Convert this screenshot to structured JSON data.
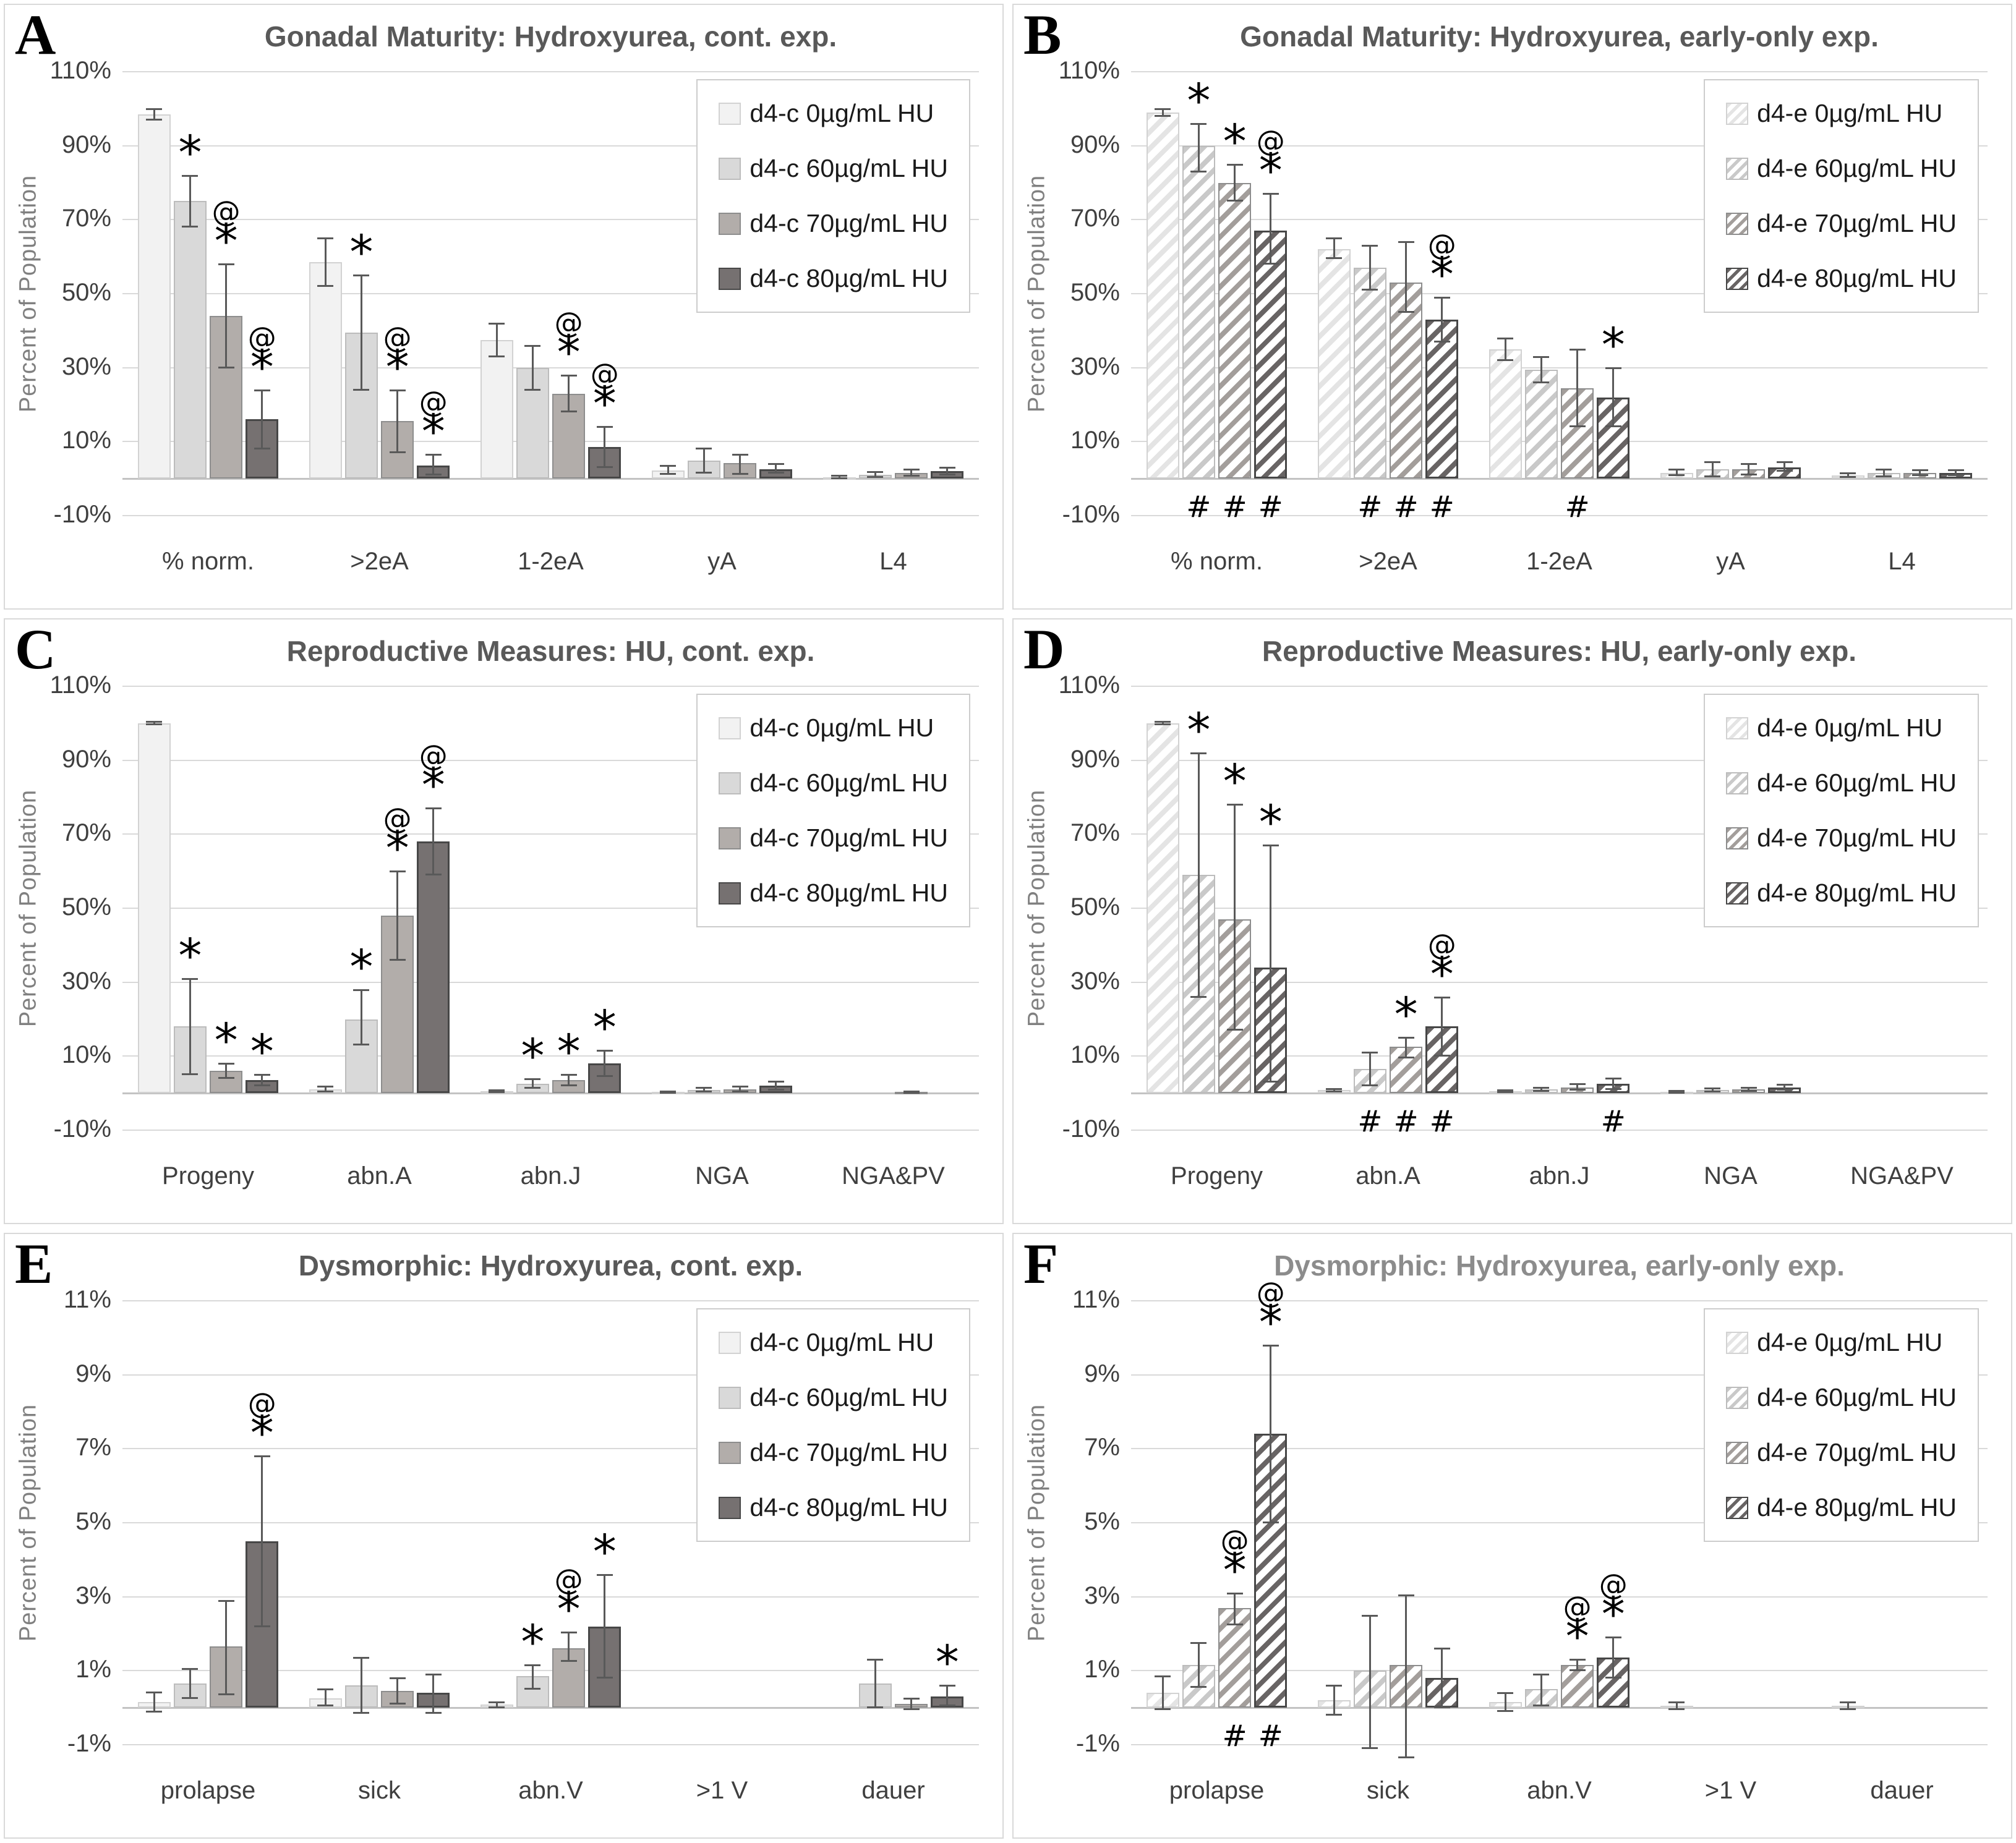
{
  "colors": {
    "series_fill": [
      "#f2f2f2",
      "#d9d9d9",
      "#b2adaa",
      "#767171"
    ],
    "series_border": [
      "#d2d2d2",
      "#bcbcbc",
      "#8d8d8d",
      "#474747"
    ],
    "hatch_stripe": [
      "#e4e4e4",
      "#c9c9c9",
      "#a39e9b",
      "#686464"
    ],
    "hatch_bg": "#ffffff",
    "error_bar": "#595959",
    "gridline": "#d9d9d9",
    "axis_line": "#c3c3c3",
    "tick_text": "#3f3f3f",
    "category_text": "#3f3f3f",
    "title_dark": "#595959",
    "title_light": "#8c8c8c",
    "ylabel_text": "#808080",
    "legend_border": "#cccccc",
    "legend_text": "#1a1a1a",
    "panel_letter": "#000000",
    "annotation": "#000000"
  },
  "chart_data": [
    {
      "panel": "A",
      "type": "bar",
      "hatched": false,
      "title_shade": "dark",
      "title": "Gonadal Maturity: Hydroxyurea, cont. exp.",
      "ylabel": "Percent of Population",
      "ylim": [
        -10,
        110
      ],
      "yticks": [
        "110%",
        "90%",
        "70%",
        "50%",
        "30%",
        "10%",
        "-10%"
      ],
      "grid": true,
      "legend_position": "top-right",
      "categories": [
        "% norm.",
        ">2eA",
        "1-2eA",
        "yA",
        "L4"
      ],
      "series": [
        {
          "name": "d4-c 0µg/mL HU",
          "values": [
            98.5,
            58.5,
            37.5,
            2.2,
            0.4
          ],
          "err_lo": [
            97,
            52,
            33,
            1.2,
            0.1
          ],
          "err_hi": [
            100,
            65,
            42,
            3.6,
            0.8
          ],
          "ann_above": [
            "",
            "",
            "",
            "",
            ""
          ],
          "ann_below": [
            "",
            "",
            "",
            "",
            ""
          ]
        },
        {
          "name": "d4-c 60µg/mL HU",
          "values": [
            75,
            39.5,
            30,
            4.8,
            1.1
          ],
          "err_lo": [
            68,
            24,
            24,
            1.5,
            0.4
          ],
          "err_hi": [
            82,
            55,
            36,
            8.2,
            1.8
          ],
          "ann_above": [
            "*",
            "*",
            "",
            "",
            ""
          ],
          "ann_below": [
            "",
            "",
            "",
            "",
            ""
          ]
        },
        {
          "name": "d4-c 70µg/mL HU",
          "values": [
            44,
            15.5,
            23,
            4.2,
            1.6
          ],
          "err_lo": [
            30,
            7,
            18,
            1.2,
            0.7
          ],
          "err_hi": [
            58,
            24,
            28,
            6.6,
            2.5
          ],
          "ann_above": [
            "@*",
            "@*",
            "@*",
            "",
            ""
          ],
          "ann_below": [
            "",
            "",
            "",
            "",
            ""
          ]
        },
        {
          "name": "d4-c 80µg/mL HU",
          "values": [
            16,
            3.5,
            8.5,
            2.6,
            2.1
          ],
          "err_lo": [
            8,
            1,
            3,
            1.5,
            1.1
          ],
          "err_hi": [
            24,
            6.5,
            14,
            4,
            3.1
          ],
          "ann_above": [
            "@*",
            "@*",
            "@*",
            "",
            ""
          ],
          "ann_below": [
            "",
            "",
            "",
            "",
            ""
          ]
        }
      ]
    },
    {
      "panel": "B",
      "type": "bar",
      "hatched": true,
      "title_shade": "dark",
      "title": "Gonadal Maturity: Hydroxyurea, early-only exp.",
      "ylabel": "Percent of Population",
      "ylim": [
        -10,
        110
      ],
      "yticks": [
        "110%",
        "90%",
        "70%",
        "50%",
        "30%",
        "10%",
        "-10%"
      ],
      "grid": true,
      "legend_position": "top-right",
      "categories": [
        "% norm.",
        ">2eA",
        "1-2eA",
        "yA",
        "L4"
      ],
      "series": [
        {
          "name": "d4-e 0µg/mL HU",
          "values": [
            99,
            62,
            35,
            1.6,
            0.9
          ],
          "err_lo": [
            98,
            59.5,
            32,
            0.9,
            0.4
          ],
          "err_hi": [
            100,
            65,
            38,
            2.6,
            1.5
          ],
          "ann_above": [
            "",
            "",
            "",
            "",
            ""
          ],
          "ann_below": [
            "",
            "",
            "",
            "",
            ""
          ]
        },
        {
          "name": "d4-e 60µg/mL HU",
          "values": [
            90,
            57,
            29.5,
            2.6,
            1.5
          ],
          "err_lo": [
            83,
            51,
            26,
            0.6,
            0.6
          ],
          "err_hi": [
            96,
            63,
            33,
            4.6,
            2.5
          ],
          "ann_above": [
            "*",
            "",
            "",
            "",
            ""
          ],
          "ann_below": [
            "#",
            "#",
            "",
            "",
            ""
          ]
        },
        {
          "name": "d4-e 70µg/mL HU",
          "values": [
            80,
            53,
            24.5,
            2.6,
            1.6
          ],
          "err_lo": [
            75,
            45,
            14,
            1.1,
            0.9
          ],
          "err_hi": [
            85,
            64,
            35,
            4.1,
            2.3
          ],
          "ann_above": [
            "*",
            "",
            "",
            "",
            ""
          ],
          "ann_below": [
            "#",
            "#",
            "#",
            "",
            ""
          ]
        },
        {
          "name": "d4-e 80µg/mL HU",
          "values": [
            67,
            43,
            22,
            3.1,
            1.6
          ],
          "err_lo": [
            58,
            37,
            14,
            2,
            0.9
          ],
          "err_hi": [
            77,
            49,
            30,
            4.6,
            2.4
          ],
          "ann_above": [
            "@*",
            "@*",
            "*",
            "",
            ""
          ],
          "ann_below": [
            "#",
            "#",
            "",
            "",
            ""
          ]
        }
      ]
    },
    {
      "panel": "C",
      "type": "bar",
      "hatched": false,
      "title_shade": "dark",
      "title": "Reproductive Measures: HU, cont. exp.",
      "ylabel": "Percent of Population",
      "ylim": [
        -10,
        110
      ],
      "yticks": [
        "110%",
        "90%",
        "70%",
        "50%",
        "30%",
        "10%",
        "-10%"
      ],
      "grid": true,
      "legend_position": "top-right",
      "categories": [
        "Progeny",
        "abn.A",
        "abn.J",
        "NGA",
        "NGA&PV"
      ],
      "series": [
        {
          "name": "d4-c 0µg/mL HU",
          "values": [
            100,
            1,
            0.5,
            0.3,
            0
          ],
          "err_lo": [
            99.6,
            0.3,
            0.2,
            0.1,
            0
          ],
          "err_hi": [
            100.4,
            1.8,
            0.9,
            0.6,
            0
          ],
          "ann_above": [
            "",
            "",
            "",
            "",
            ""
          ],
          "ann_below": [
            "",
            "",
            "",
            "",
            ""
          ]
        },
        {
          "name": "d4-c 60µg/mL HU",
          "values": [
            18,
            20,
            2.5,
            0.8,
            0
          ],
          "err_lo": [
            5,
            13,
            1.3,
            0.3,
            0
          ],
          "err_hi": [
            31,
            28,
            3.8,
            1.5,
            0
          ],
          "ann_above": [
            "*",
            "*",
            "*",
            "",
            ""
          ],
          "ann_below": [
            "",
            "",
            "",
            "",
            ""
          ]
        },
        {
          "name": "d4-c 70µg/mL HU",
          "values": [
            6,
            48,
            3.5,
            1,
            0.3
          ],
          "err_lo": [
            4,
            36,
            2,
            0.4,
            0.1
          ],
          "err_hi": [
            8,
            60,
            5,
            1.8,
            0.5
          ],
          "ann_above": [
            "*",
            "@*",
            "*",
            "",
            ""
          ],
          "ann_below": [
            "",
            "",
            "",
            "",
            ""
          ]
        },
        {
          "name": "d4-c 80µg/mL HU",
          "values": [
            3.5,
            68,
            8,
            2,
            0
          ],
          "err_lo": [
            2,
            59,
            4.5,
            0.8,
            0
          ],
          "err_hi": [
            5,
            77,
            11.5,
            3.2,
            0
          ],
          "ann_above": [
            "*",
            "@*",
            "*",
            "",
            ""
          ],
          "ann_below": [
            "",
            "",
            "",
            "",
            ""
          ]
        }
      ]
    },
    {
      "panel": "D",
      "type": "bar",
      "hatched": true,
      "title_shade": "dark",
      "title": "Reproductive Measures: HU, early-only exp.",
      "ylabel": "Percent of Population",
      "ylim": [
        -10,
        110
      ],
      "yticks": [
        "110%",
        "90%",
        "70%",
        "50%",
        "30%",
        "10%",
        "-10%"
      ],
      "grid": true,
      "legend_position": "top-right",
      "categories": [
        "Progeny",
        "abn.A",
        "abn.J",
        "NGA",
        "NGA&PV"
      ],
      "series": [
        {
          "name": "d4-e 0µg/mL HU",
          "values": [
            100,
            0.8,
            0.5,
            0.4,
            0
          ],
          "err_lo": [
            99.6,
            0.4,
            0.2,
            0.1,
            0
          ],
          "err_hi": [
            100.4,
            1.2,
            0.8,
            0.7,
            0
          ],
          "ann_above": [
            "",
            "",
            "",
            "",
            ""
          ],
          "ann_below": [
            "",
            "",
            "",
            "",
            ""
          ]
        },
        {
          "name": "d4-e 60µg/mL HU",
          "values": [
            59,
            6.5,
            1,
            0.8,
            0
          ],
          "err_lo": [
            26,
            2,
            0.5,
            0.3,
            0
          ],
          "err_hi": [
            92,
            11,
            1.6,
            1.3,
            0
          ],
          "ann_above": [
            "*",
            "",
            "",
            "",
            ""
          ],
          "ann_below": [
            "",
            "#",
            "",
            "",
            ""
          ]
        },
        {
          "name": "d4-e 70µg/mL HU",
          "values": [
            47,
            12.5,
            1.5,
            1,
            0
          ],
          "err_lo": [
            17,
            9.5,
            0.8,
            0.5,
            0
          ],
          "err_hi": [
            78,
            15,
            2.5,
            1.6,
            0
          ],
          "ann_above": [
            "*",
            "*",
            "",
            "",
            ""
          ],
          "ann_below": [
            "",
            "#",
            "",
            "",
            ""
          ]
        },
        {
          "name": "d4-e 80µg/mL HU",
          "values": [
            34,
            18,
            2.5,
            1.5,
            0
          ],
          "err_lo": [
            3,
            10,
            1,
            0.8,
            0
          ],
          "err_hi": [
            67,
            26,
            4,
            2.3,
            0
          ],
          "ann_above": [
            "*",
            "@*",
            "",
            "",
            ""
          ],
          "ann_below": [
            "",
            "#",
            "#",
            "",
            ""
          ]
        }
      ]
    },
    {
      "panel": "E",
      "type": "bar",
      "hatched": false,
      "title_shade": "dark",
      "title": "Dysmorphic: Hydroxyurea, cont. exp.",
      "ylabel": "Percent of Population",
      "ylim": [
        -1,
        11
      ],
      "yticks": [
        "11%",
        "9%",
        "7%",
        "5%",
        "3%",
        "1%",
        "-1%"
      ],
      "grid": true,
      "legend_position": "top-right",
      "categories": [
        "prolapse",
        "sick",
        "abn.V",
        ">1 V",
        "dauer"
      ],
      "series": [
        {
          "name": "d4-c 0µg/mL HU",
          "values": [
            0.15,
            0.25,
            0.08,
            0,
            0
          ],
          "err_lo": [
            -0.12,
            0.05,
            0,
            0,
            0
          ],
          "err_hi": [
            0.42,
            0.5,
            0.16,
            0,
            0
          ],
          "ann_above": [
            "",
            "",
            "",
            "",
            ""
          ],
          "ann_below": [
            "",
            "",
            "",
            "",
            ""
          ]
        },
        {
          "name": "d4-c 60µg/mL HU",
          "values": [
            0.65,
            0.6,
            0.85,
            0,
            0.65
          ],
          "err_lo": [
            0.25,
            -0.15,
            0.5,
            0,
            0
          ],
          "err_hi": [
            1.05,
            1.35,
            1.15,
            0,
            1.3
          ],
          "ann_above": [
            "",
            "",
            "*",
            "",
            ""
          ],
          "ann_below": [
            "",
            "",
            "",
            "",
            ""
          ]
        },
        {
          "name": "d4-c 70µg/mL HU",
          "values": [
            1.65,
            0.45,
            1.6,
            0,
            0.1
          ],
          "err_lo": [
            0.35,
            0.1,
            1.25,
            0,
            -0.05
          ],
          "err_hi": [
            2.9,
            0.8,
            2.05,
            0,
            0.25
          ],
          "ann_above": [
            "",
            "",
            "@*",
            "",
            ""
          ],
          "ann_below": [
            "",
            "",
            "",
            "",
            ""
          ]
        },
        {
          "name": "d4-c 80µg/mL HU",
          "values": [
            4.5,
            0.4,
            2.2,
            0,
            0.3
          ],
          "err_lo": [
            2.2,
            -0.15,
            0.8,
            0,
            0.05
          ],
          "err_hi": [
            6.8,
            0.9,
            3.6,
            0,
            0.6
          ],
          "ann_above": [
            "@*",
            "",
            "*",
            "",
            "*"
          ],
          "ann_below": [
            "",
            "",
            "",
            "",
            ""
          ]
        }
      ]
    },
    {
      "panel": "F",
      "type": "bar",
      "hatched": true,
      "title_shade": "light",
      "title": "Dysmorphic: Hydroxyurea, early-only exp.",
      "ylabel": "Percent of Population",
      "ylim": [
        -1,
        11
      ],
      "yticks": [
        "11%",
        "9%",
        "7%",
        "5%",
        "3%",
        "1%",
        "-1%"
      ],
      "grid": true,
      "legend_position": "top-right",
      "categories": [
        "prolapse",
        "sick",
        "abn.V",
        ">1 V",
        "dauer"
      ],
      "series": [
        {
          "name": "d4-e 0µg/mL HU",
          "values": [
            0.4,
            0.2,
            0.15,
            0.06,
            0.06
          ],
          "err_lo": [
            -0.05,
            -0.2,
            -0.1,
            -0.04,
            -0.04
          ],
          "err_hi": [
            0.85,
            0.6,
            0.4,
            0.16,
            0.16
          ],
          "ann_above": [
            "",
            "",
            "",
            "",
            ""
          ],
          "ann_below": [
            "",
            "",
            "",
            "",
            ""
          ]
        },
        {
          "name": "d4-e 60µg/mL HU",
          "values": [
            1.15,
            1,
            0.5,
            0,
            0
          ],
          "err_lo": [
            0.55,
            -1.1,
            0.05,
            0,
            0
          ],
          "err_hi": [
            1.75,
            2.5,
            0.9,
            0,
            0
          ],
          "ann_above": [
            "",
            "",
            "",
            "",
            ""
          ],
          "ann_below": [
            "",
            "",
            "",
            "",
            ""
          ]
        },
        {
          "name": "d4-e 70µg/mL HU",
          "values": [
            2.7,
            1.15,
            1.15,
            0,
            0
          ],
          "err_lo": [
            2.25,
            -1.35,
            1,
            0,
            0
          ],
          "err_hi": [
            3.1,
            3.05,
            1.3,
            0,
            0
          ],
          "ann_above": [
            "@*",
            "",
            "@*",
            "",
            ""
          ],
          "ann_below": [
            "#",
            "",
            "",
            "",
            ""
          ]
        },
        {
          "name": "d4-e 80µg/mL HU",
          "values": [
            7.4,
            0.8,
            1.35,
            0,
            0
          ],
          "err_lo": [
            5,
            0,
            0.8,
            0,
            0
          ],
          "err_hi": [
            9.8,
            1.6,
            1.9,
            0,
            0
          ],
          "ann_above": [
            "@*",
            "",
            "@*",
            "",
            ""
          ],
          "ann_below": [
            "#",
            "",
            "",
            "",
            ""
          ]
        }
      ]
    }
  ]
}
